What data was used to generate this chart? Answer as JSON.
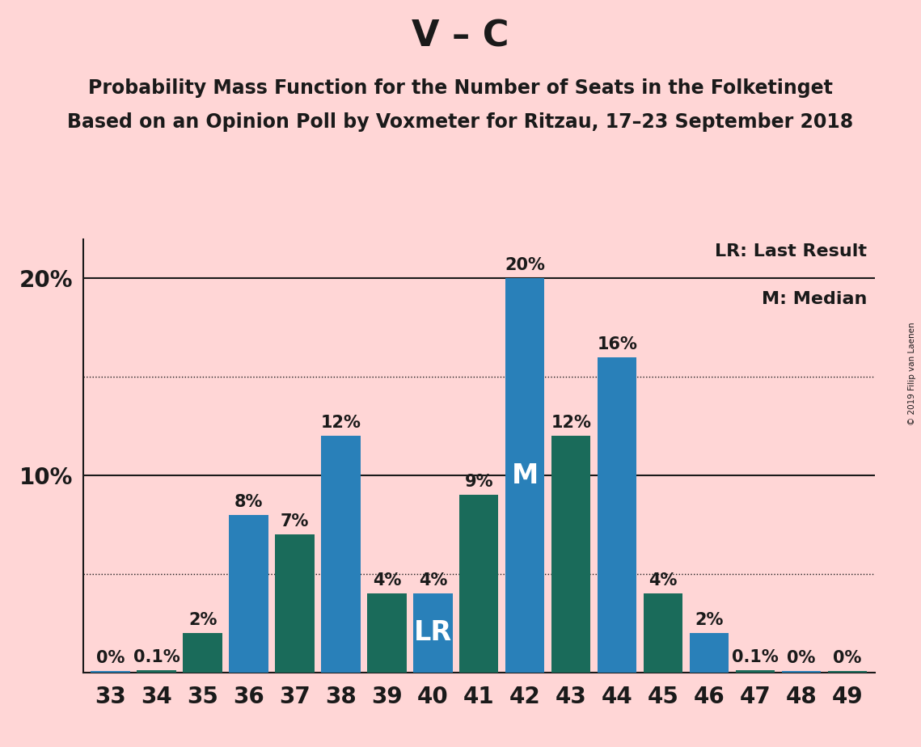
{
  "title": "V – C",
  "subtitle1": "Probability Mass Function for the Number of Seats in the Folketinget",
  "subtitle2": "Based on an Opinion Poll by Voxmeter for Ritzau, 17–23 September 2018",
  "copyright": "© 2019 Filip van Laenen",
  "categories": [
    33,
    34,
    35,
    36,
    37,
    38,
    39,
    40,
    41,
    42,
    43,
    44,
    45,
    46,
    47,
    48,
    49
  ],
  "values": [
    0.05,
    0.1,
    2.0,
    8.0,
    7.0,
    12.0,
    4.0,
    4.0,
    9.0,
    20.0,
    12.0,
    16.0,
    4.0,
    2.0,
    0.1,
    0.05,
    0.05
  ],
  "blue_color": "#2980b9",
  "teal_color": "#1a6b5a",
  "background_color": "#ffd6d6",
  "text_color": "#1a1a1a",
  "LR_seat": 40,
  "M_seat": 42,
  "ylim": [
    0,
    22
  ],
  "solid_yticks": [
    0,
    10,
    20
  ],
  "dotted_yticks": [
    5,
    15
  ],
  "legend_lr": "LR: Last Result",
  "legend_m": "M: Median",
  "title_fontsize": 32,
  "subtitle_fontsize": 17,
  "bar_label_fontsize": 15,
  "axis_tick_fontsize": 20,
  "legend_fontsize": 16,
  "bar_labels": [
    "0%",
    "0.1%",
    "2%",
    "8%",
    "7%",
    "12%",
    "4%",
    "4%",
    "9%",
    "20%",
    "12%",
    "16%",
    "4%",
    "2%",
    "0.1%",
    "0%",
    "0%"
  ],
  "bar_colors_per_seat": {
    "33": "blue",
    "34": "teal",
    "35": "teal",
    "36": "blue",
    "37": "teal",
    "38": "blue",
    "39": "teal",
    "40": "blue",
    "41": "teal",
    "42": "blue",
    "43": "teal",
    "44": "blue",
    "45": "teal",
    "46": "blue",
    "47": "teal",
    "48": "blue",
    "49": "teal"
  }
}
